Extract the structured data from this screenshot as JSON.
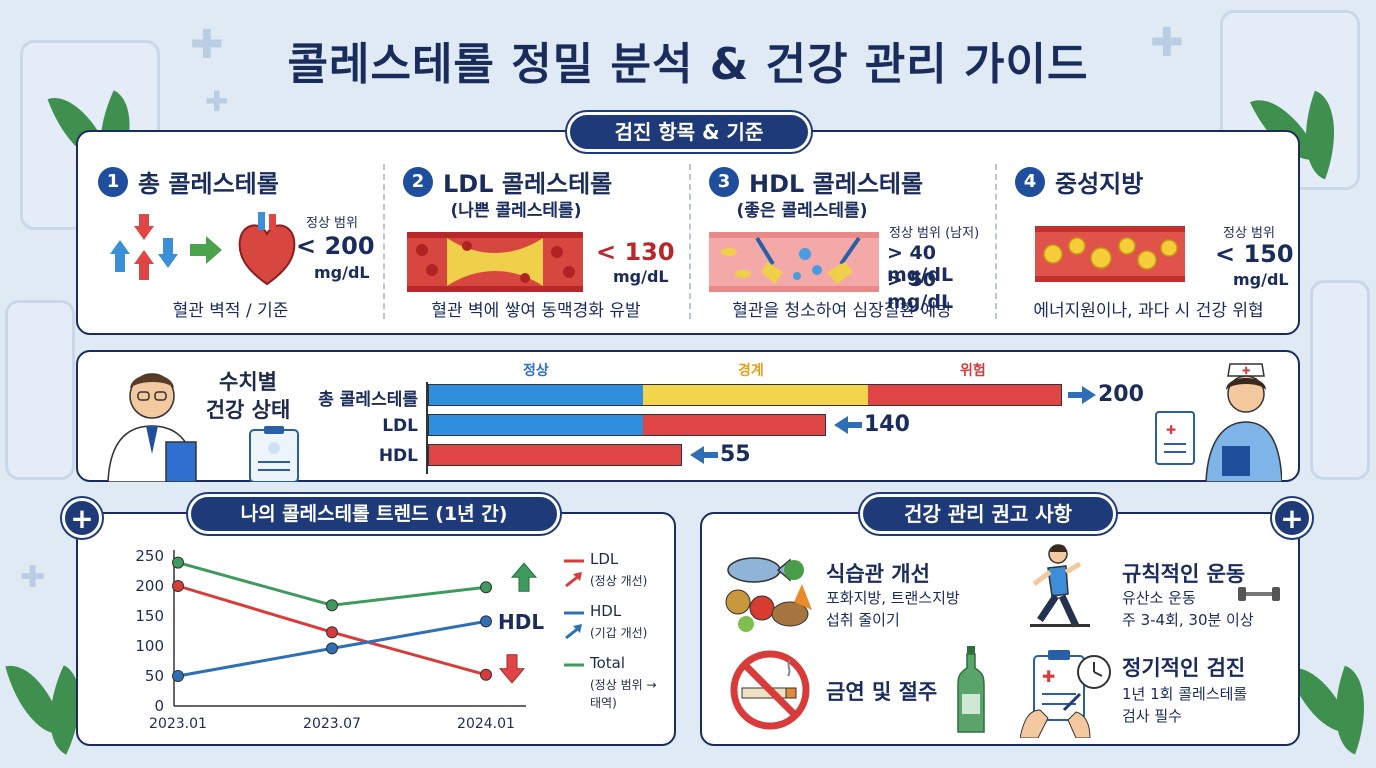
{
  "title": "콜레스테롤 정밀 분석 & 건강 관리 가이드",
  "checkup": {
    "header": "검진 항목 & 기준",
    "items": [
      {
        "num": "1",
        "name": "총 콜레스테롤",
        "sub": "",
        "range_label": "정상 범위",
        "range_values": [
          "< 200"
        ],
        "unit": "mg/dL",
        "desc": "혈관 벽적 / 기준"
      },
      {
        "num": "2",
        "name": "LDL 콜레스테롤",
        "sub": "(나쁜 콜레스테롤)",
        "range_label": "",
        "range_values": [
          "< 130"
        ],
        "unit": "mg/dL",
        "desc": "혈관 벽에 쌓여 동맥경화 유발"
      },
      {
        "num": "3",
        "name": "HDL 콜레스테롤",
        "sub": "(좋은 콜레스테롤)",
        "range_label": "정상 범위 (남저)",
        "range_values": [
          "> 40 mg/dL",
          "> 50 mg/dL"
        ],
        "unit": "",
        "desc": "혈관을 청소하여 심장질환 예방"
      },
      {
        "num": "4",
        "name": "중성지방",
        "sub": "",
        "range_label": "정상 범위",
        "range_values": [
          "< 150"
        ],
        "unit": "mg/dL",
        "desc": "에너지원이나, 과다 시 건강 위협"
      }
    ]
  },
  "status": {
    "header_line1": "수치별",
    "header_line2": "건강 상태",
    "zones": [
      {
        "label": "정상",
        "color": "#2f6fd0"
      },
      {
        "label": "경계",
        "color": "#e0a21a"
      },
      {
        "label": "위험",
        "color": "#d93b3b"
      }
    ],
    "bars": [
      {
        "label": "총 콜레스테롤",
        "value": "200"
      },
      {
        "label": "LDL",
        "value": "140"
      },
      {
        "label": "HDL",
        "value": "55"
      }
    ]
  },
  "trend": {
    "header": "나의 콜레스테롤 트렌드 (1년 간)",
    "hdl_tag": "HDL",
    "legend": [
      {
        "name": "LDL",
        "note": "(정상 개선)",
        "color": "#d93b3b"
      },
      {
        "name": "HDL",
        "note": "(기갑 개선)",
        "color": "#2f6fb5"
      },
      {
        "name": "Total",
        "note": "(정상 범위 → 태역)",
        "color": "#3f9a5e"
      }
    ]
  },
  "chart_data": {
    "type": "line",
    "x": [
      "2023.01",
      "2023.07",
      "2024.01"
    ],
    "ylim": [
      0,
      250
    ],
    "yticks": [
      0,
      50,
      100,
      150,
      200,
      250
    ],
    "series": [
      {
        "name": "LDL",
        "values": [
          200,
          123,
          52
        ]
      },
      {
        "name": "HDL",
        "values": [
          50,
          96,
          141
        ]
      },
      {
        "name": "Total",
        "values": [
          239,
          168,
          198
        ]
      }
    ]
  },
  "recommend": {
    "header": "건강 관리 권고 사항",
    "items": [
      {
        "title": "식습관 개선",
        "lines": [
          "포화지방, 트랜스지방",
          "섭취 줄이기"
        ]
      },
      {
        "title": "규칙적인 운동",
        "lines": [
          "유산소 운동",
          "주 3-4회, 30분 이상"
        ]
      },
      {
        "title": "금연 및 절주",
        "lines": []
      },
      {
        "title": "정기적인 검진",
        "lines": [
          "1년 1회 콜레스테롤",
          "검사 필수"
        ]
      }
    ]
  },
  "colors": {
    "navy": "#1f3a78",
    "normal": "#2f8fde",
    "border": "#f2d54a",
    "danger": "#e04545"
  }
}
